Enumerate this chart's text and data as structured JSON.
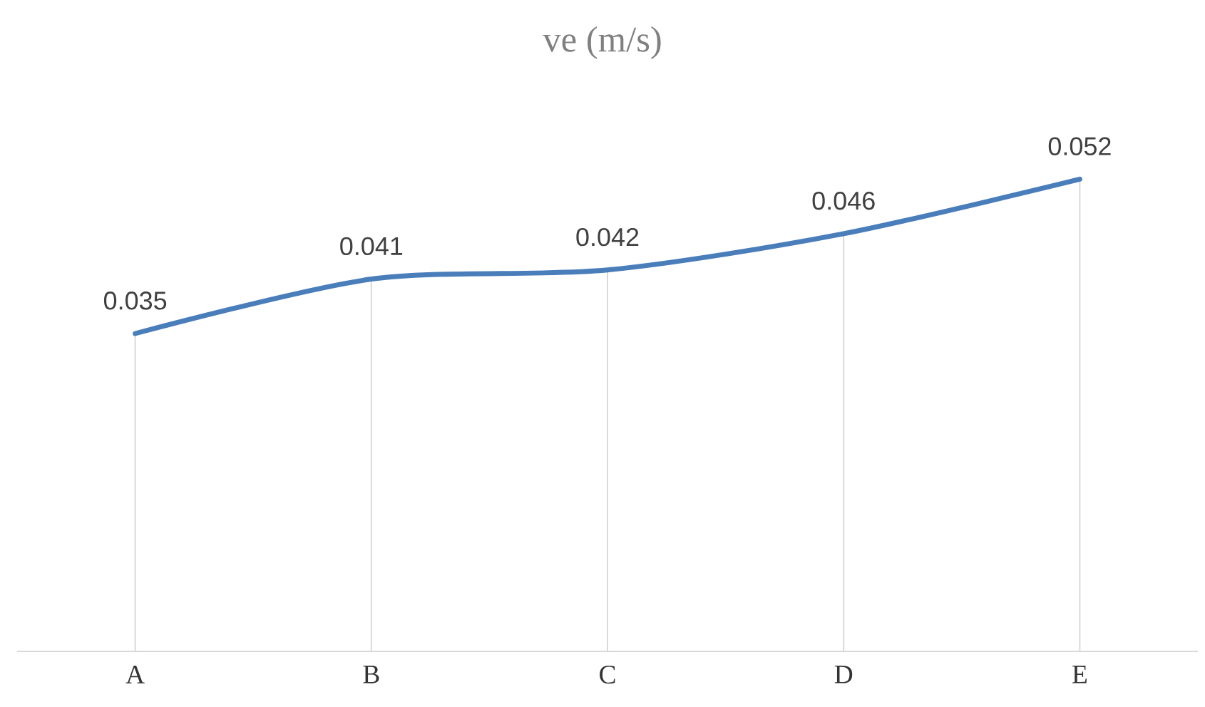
{
  "chart_data": {
    "type": "line",
    "title": "ve (m/s)",
    "categories": [
      "A",
      "B",
      "C",
      "D",
      "E"
    ],
    "values": [
      0.035,
      0.041,
      0.042,
      0.046,
      0.052
    ],
    "color": "#4a7ebb",
    "data_labels": true,
    "grid": "x",
    "tick_labels": "x"
  }
}
